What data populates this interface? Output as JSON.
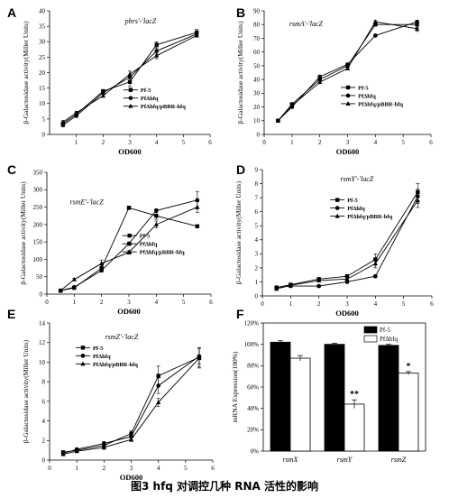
{
  "caption": "图3 hfq 对调控几种 RNA 活性的影响",
  "chart_data": [
    {
      "panel": "A",
      "type": "line",
      "subtitle": "phrs'-'lacZ",
      "xlabel": "OD600",
      "ylabel": "β-Galactosidase activity(Miller Units)",
      "xlim": [
        0,
        6
      ],
      "ylim": [
        0,
        40
      ],
      "xticks": [
        1,
        2,
        3,
        4,
        5,
        6
      ],
      "yticks": [
        0,
        5,
        10,
        15,
        20,
        25,
        30,
        35,
        40
      ],
      "legend_position": "center-right",
      "series": [
        {
          "name": "Pf-5",
          "marker": "square",
          "points": [
            [
              0.5,
              3.5
            ],
            [
              1,
              6.5
            ],
            [
              2,
              14
            ],
            [
              3,
              17
            ],
            [
              4,
              29
            ],
            [
              5.5,
              33
            ]
          ],
          "err": [
            0.5,
            0.5,
            0.5,
            1.5,
            1.0,
            1.0
          ]
        },
        {
          "name": "PfΔhfq",
          "marker": "circle",
          "points": [
            [
              0.5,
              3
            ],
            [
              1,
              6
            ],
            [
              2,
              13.5
            ],
            [
              3,
              18.5
            ],
            [
              4,
              27
            ],
            [
              5.5,
              32.5
            ]
          ],
          "err": [
            0.5,
            0.5,
            0.5,
            2.0,
            1.0,
            1.0
          ]
        },
        {
          "name": "PfΔhfq/pBBR-hfq",
          "marker": "triangle",
          "points": [
            [
              0.5,
              4
            ],
            [
              1,
              7
            ],
            [
              2,
              12.5
            ],
            [
              3,
              19.5
            ],
            [
              4,
              25.5
            ],
            [
              5.5,
              32
            ]
          ],
          "err": [
            0.5,
            0.5,
            0.5,
            1.0,
            1.0,
            0.5
          ]
        }
      ]
    },
    {
      "panel": "B",
      "type": "line",
      "subtitle": "rsmA'-'lacZ",
      "xlabel": "OD600",
      "ylabel": "β-Galactosidase activity(Miller Units)",
      "xlim": [
        0,
        6
      ],
      "ylim": [
        0,
        90
      ],
      "xticks": [
        0,
        1,
        2,
        3,
        4,
        5,
        6
      ],
      "yticks": [
        0,
        10,
        20,
        30,
        40,
        50,
        60,
        70,
        80,
        90
      ],
      "legend_position": "center-right",
      "series": [
        {
          "name": "Pf-5",
          "marker": "square",
          "points": [
            [
              0.5,
              10
            ],
            [
              1,
              22
            ],
            [
              2,
              40
            ],
            [
              3,
              50
            ],
            [
              4,
              80
            ],
            [
              5.5,
              80
            ]
          ],
          "err": [
            1,
            1,
            1,
            1,
            1,
            2
          ]
        },
        {
          "name": "PfΔhfq",
          "marker": "circle",
          "points": [
            [
              0.5,
              10
            ],
            [
              1,
              20
            ],
            [
              2,
              42
            ],
            [
              3,
              51
            ],
            [
              4,
              72
            ],
            [
              5.5,
              82
            ]
          ],
          "err": [
            1,
            1,
            1,
            1,
            1,
            1
          ]
        },
        {
          "name": "PfΔhfq/pBBR-hfq",
          "marker": "triangle",
          "points": [
            [
              0.5,
              10
            ],
            [
              1,
              21
            ],
            [
              2,
              38
            ],
            [
              3,
              48
            ],
            [
              4,
              82
            ],
            [
              5.5,
              77
            ]
          ],
          "err": [
            1,
            1,
            1,
            1,
            1,
            2
          ]
        }
      ]
    },
    {
      "panel": "C",
      "type": "line",
      "subtitle": "rsmE'-'lacZ",
      "xlabel": "OD600",
      "ylabel": "β-Galactosidase activity(Miller Units)",
      "xlim": [
        0,
        6
      ],
      "ylim": [
        0,
        350
      ],
      "xticks": [
        0,
        1,
        2,
        3,
        4,
        5,
        6
      ],
      "yticks": [
        0,
        50,
        100,
        150,
        200,
        250,
        300,
        350
      ],
      "legend_position": "center-right",
      "series": [
        {
          "name": "Pf-5",
          "marker": "square",
          "points": [
            [
              0.5,
              10
            ],
            [
              1,
              18
            ],
            [
              2,
              75
            ],
            [
              3,
              248
            ],
            [
              4,
              225
            ],
            [
              5.5,
              195
            ]
          ],
          "err": [
            2,
            2,
            8,
            5,
            10,
            0
          ]
        },
        {
          "name": "PfΔhfq",
          "marker": "circle",
          "points": [
            [
              0.5,
              10
            ],
            [
              1,
              20
            ],
            [
              2,
              68
            ],
            [
              3,
              145
            ],
            [
              4,
              240
            ],
            [
              5.5,
              270
            ]
          ],
          "err": [
            2,
            2,
            5,
            5,
            5,
            25
          ]
        },
        {
          "name": "PfΔhfq/pBBR-hfq",
          "marker": "triangle",
          "points": [
            [
              0.5,
              10
            ],
            [
              1,
              42
            ],
            [
              2,
              88
            ],
            [
              3,
              120
            ],
            [
              4,
              200
            ],
            [
              5.5,
              250
            ]
          ],
          "err": [
            2,
            3,
            10,
            5,
            10,
            15
          ]
        }
      ]
    },
    {
      "panel": "D",
      "type": "line",
      "subtitle": "rsmY'-'lacZ",
      "xlabel": "OD600",
      "ylabel": "β-Galactosidase activity(Miller Units)",
      "xlim": [
        0,
        6
      ],
      "ylim": [
        0,
        9
      ],
      "xticks": [
        0,
        1,
        2,
        3,
        4,
        5,
        6
      ],
      "yticks": [
        0,
        1,
        2,
        3,
        4,
        5,
        6,
        7,
        8,
        9
      ],
      "legend_position": "upper-center",
      "series": [
        {
          "name": "Pf-5",
          "marker": "square",
          "points": [
            [
              0.5,
              0.6
            ],
            [
              1,
              0.8
            ],
            [
              2,
              1.2
            ],
            [
              3,
              1.4
            ],
            [
              4,
              2.6
            ],
            [
              5.5,
              7.4
            ]
          ],
          "err": [
            0.1,
            0.1,
            0.1,
            0.1,
            0.4,
            0.6
          ]
        },
        {
          "name": "PfΔhfq",
          "marker": "circle",
          "points": [
            [
              0.5,
              0.6
            ],
            [
              1,
              0.7
            ],
            [
              2,
              0.7
            ],
            [
              3,
              1.0
            ],
            [
              4,
              1.4
            ],
            [
              5.5,
              7.1
            ]
          ],
          "err": [
            0.1,
            0.1,
            0.1,
            0.1,
            0.1,
            0.5
          ]
        },
        {
          "name": "PfΔhfq/pBBR-hfq",
          "marker": "triangle",
          "points": [
            [
              0.5,
              0.5
            ],
            [
              1,
              0.75
            ],
            [
              2,
              1.1
            ],
            [
              3,
              1.2
            ],
            [
              4,
              2.3
            ],
            [
              5.5,
              6.8
            ]
          ],
          "err": [
            0.1,
            0.1,
            0.1,
            0.1,
            0.3,
            0.5
          ]
        }
      ]
    },
    {
      "panel": "E",
      "type": "line",
      "subtitle": "rsmZ'-'lacZ",
      "xlabel": "OD600",
      "ylabel": "β-Galactosidase activity(Miller Units)",
      "xlim": [
        0,
        6
      ],
      "ylim": [
        0,
        14
      ],
      "xticks": [
        0,
        1,
        2,
        3,
        4,
        5,
        6
      ],
      "yticks": [
        0,
        2,
        4,
        6,
        8,
        10,
        12,
        14
      ],
      "legend_position": "upper-left",
      "series": [
        {
          "name": "Pf-5",
          "marker": "square",
          "points": [
            [
              0.5,
              0.8
            ],
            [
              1,
              1.0
            ],
            [
              2,
              1.5
            ],
            [
              3,
              2.7
            ],
            [
              4,
              8.6
            ],
            [
              5.5,
              10.5
            ]
          ],
          "err": [
            0.1,
            0.1,
            0.2,
            0.3,
            1.0,
            1.0
          ]
        },
        {
          "name": "PfΔhfq",
          "marker": "circle",
          "points": [
            [
              0.5,
              0.7
            ],
            [
              1,
              1.1
            ],
            [
              2,
              1.7
            ],
            [
              3,
              2.4
            ],
            [
              4,
              7.6
            ],
            [
              5.5,
              10.6
            ]
          ],
          "err": [
            0.1,
            0.1,
            0.2,
            0.3,
            0.8,
            0.8
          ]
        },
        {
          "name": "PfΔhfq/pBBR-hfq",
          "marker": "triangle",
          "points": [
            [
              0.5,
              0.6
            ],
            [
              1,
              0.9
            ],
            [
              2,
              1.3
            ],
            [
              3,
              2.1
            ],
            [
              4,
              5.9
            ],
            [
              5.5,
              10.4
            ]
          ],
          "err": [
            0.1,
            0.1,
            0.2,
            0.2,
            0.4,
            1.0
          ]
        }
      ]
    },
    {
      "panel": "F",
      "type": "bar",
      "xlabel": "",
      "ylabel": "mRNA Expression(100%)",
      "ylim": [
        0,
        120
      ],
      "yticks": [
        0,
        20,
        40,
        60,
        80,
        100,
        120
      ],
      "ytick_labels": [
        "0%",
        "20%",
        "40%",
        "60%",
        "80%",
        "100%",
        "120%"
      ],
      "categories": [
        "rsmX",
        "rsmY",
        "rsmZ"
      ],
      "legend_position": "top-right",
      "significance": [
        "",
        "**",
        "*"
      ],
      "series": [
        {
          "name": "Pf-5",
          "color": "#000000",
          "values": [
            102,
            100,
            99
          ],
          "err": [
            1.5,
            1,
            1
          ]
        },
        {
          "name": "PfΔhfq",
          "color": "#ffffff",
          "values": [
            87,
            44,
            73
          ],
          "err": [
            2.5,
            4,
            1.5
          ]
        }
      ]
    }
  ]
}
